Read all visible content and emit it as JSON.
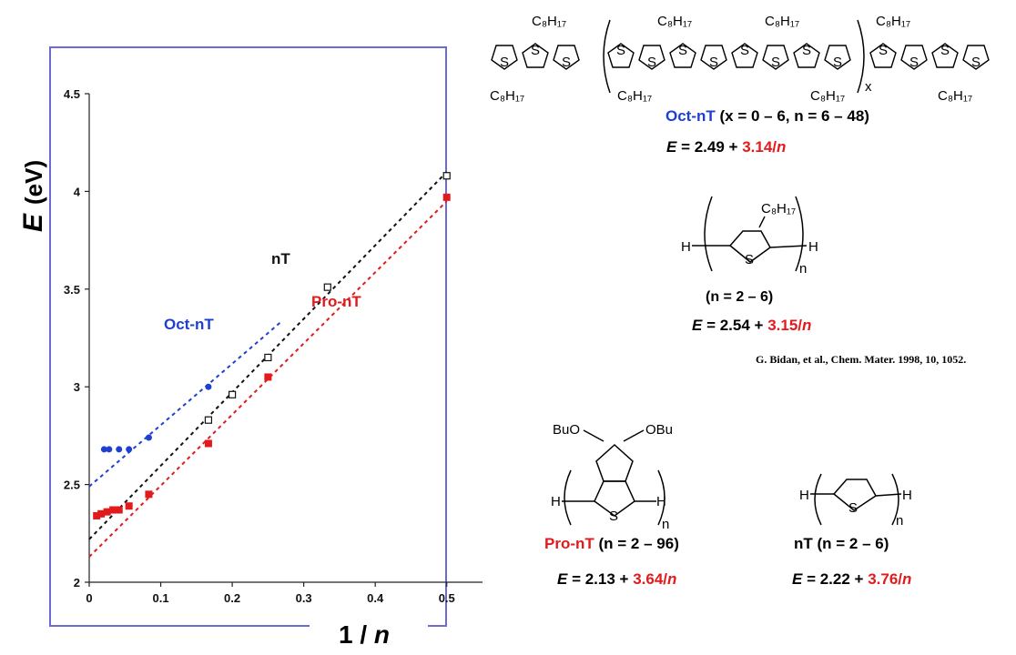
{
  "chart_data": {
    "type": "scatter",
    "xlabel_main": "1 / ",
    "xlabel_var": "n",
    "ylabel_var": "E",
    "ylabel_unit": "(eV)",
    "xlim": [
      0,
      0.55
    ],
    "ylim": [
      2,
      4.5
    ],
    "xticks": [
      "0",
      "0.1",
      "0.2",
      "0.3",
      "0.4",
      "0.5"
    ],
    "yticks": [
      "2",
      "2.5",
      "3",
      "3.5",
      "4",
      "4.5"
    ],
    "frame_color": "#6b6bd6",
    "series": [
      {
        "name": "Oct-nT",
        "color": "#1f3fd1",
        "marker": "filled-circle",
        "intercept": 2.49,
        "slope": 3.14,
        "x": [
          0.0208,
          0.0278,
          0.0417,
          0.0556,
          0.0833,
          0.1667
        ],
        "y": [
          2.68,
          2.68,
          2.68,
          2.68,
          2.74,
          3.0
        ]
      },
      {
        "name": "nT",
        "color": "#111111",
        "marker": "open-square",
        "intercept": 2.22,
        "slope": 3.76,
        "x": [
          0.1667,
          0.2,
          0.25,
          0.3333,
          0.5
        ],
        "y": [
          2.83,
          2.96,
          3.15,
          3.51,
          4.08
        ]
      },
      {
        "name": "Pro-nT",
        "color": "#e31a1c",
        "marker": "filled-square",
        "intercept": 2.13,
        "slope": 3.64,
        "x": [
          0.0104,
          0.0167,
          0.025,
          0.0333,
          0.0417,
          0.0556,
          0.0833,
          0.1667,
          0.25,
          0.5
        ],
        "y": [
          2.34,
          2.35,
          2.36,
          2.37,
          2.37,
          2.39,
          2.45,
          2.71,
          3.05,
          3.97
        ]
      }
    ]
  },
  "structures": {
    "c8h17": "C₈H₁₇",
    "s": "S",
    "h": "H",
    "n": "n",
    "x": "x",
    "bu_o": "BuO",
    "o_bu": "OBu"
  },
  "oct": {
    "name": "Oct-nT",
    "range": " (x = 0 – 6, n = 6 – 48)",
    "eq_e": "E",
    "eq_mid": " = 2.49 + ",
    "eq_slope": "3.14",
    "eq_slash": "/",
    "eq_n": "n"
  },
  "mono": {
    "range": "(n = 2 – 6)",
    "eq_e": "E",
    "eq_mid": " = 2.54 + ",
    "eq_slope": "3.15",
    "eq_slash": "/",
    "eq_n": "n",
    "reference": "G. Bidan, et al., Chem. Mater. 1998, 10, 1052."
  },
  "pro": {
    "name": "Pro-nT",
    "range": " (n = 2 – 96)",
    "eq_e": "E",
    "eq_mid": " = 2.13 + ",
    "eq_slope": "3.64",
    "eq_slash": "/",
    "eq_n": "n"
  },
  "nt": {
    "name": "nT",
    "range": " (n = 2 – 6)",
    "eq_e": "E",
    "eq_mid": " = 2.22 + ",
    "eq_slope": "3.76",
    "eq_slash": "/",
    "eq_n": "n"
  }
}
